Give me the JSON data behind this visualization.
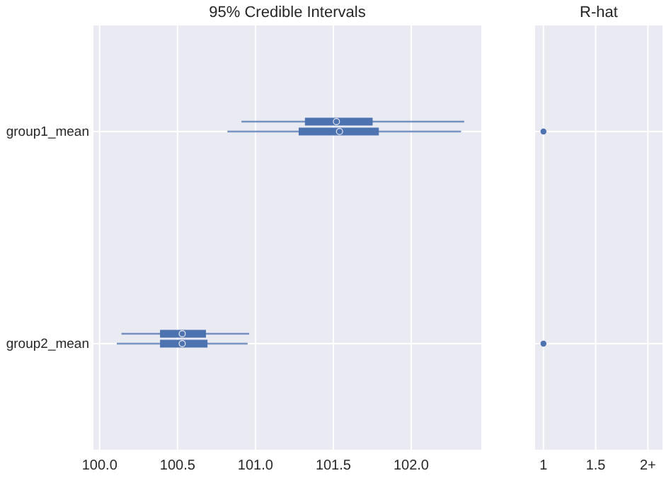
{
  "chart_data": [
    {
      "type": "box",
      "title": "95% Credible Intervals",
      "orientation": "horizontal",
      "categories": [
        "group1_mean",
        "group2_mean"
      ],
      "xlim": [
        99.96,
        102.45
      ],
      "xticks": [
        {
          "value": 100,
          "label": "100.0"
        },
        {
          "value": 100.5,
          "label": "100.5"
        },
        {
          "value": 101,
          "label": "101.0"
        },
        {
          "value": 101.5,
          "label": "101.5"
        },
        {
          "value": 102,
          "label": "102.0"
        }
      ],
      "grid": true,
      "series": [
        {
          "color": "#4c72b0",
          "boxes": [
            {
              "low": 100.91,
              "q1": 101.32,
              "median": 101.52,
              "q3": 101.75,
              "high": 102.34
            },
            {
              "low": 100.14,
              "q1": 100.39,
              "median": 100.53,
              "q3": 100.68,
              "high": 100.96
            }
          ]
        },
        {
          "color": "#4c72b0",
          "boxes": [
            {
              "low": 100.82,
              "q1": 101.28,
              "median": 101.54,
              "q3": 101.79,
              "high": 102.32
            },
            {
              "low": 100.11,
              "q1": 100.39,
              "median": 100.53,
              "q3": 100.69,
              "high": 100.95
            }
          ]
        }
      ]
    },
    {
      "type": "scatter",
      "title": "R-hat",
      "orientation": "horizontal",
      "categories": [
        null,
        null
      ],
      "xlim": [
        0.92,
        2.14
      ],
      "xticks": [
        1,
        1.5,
        {
          "value": 2,
          "label": "2+"
        }
      ],
      "grid": true,
      "marker": "circle",
      "series": [
        {
          "color": "#4c72b0",
          "values": [
            1.0,
            1.0
          ]
        }
      ]
    }
  ]
}
